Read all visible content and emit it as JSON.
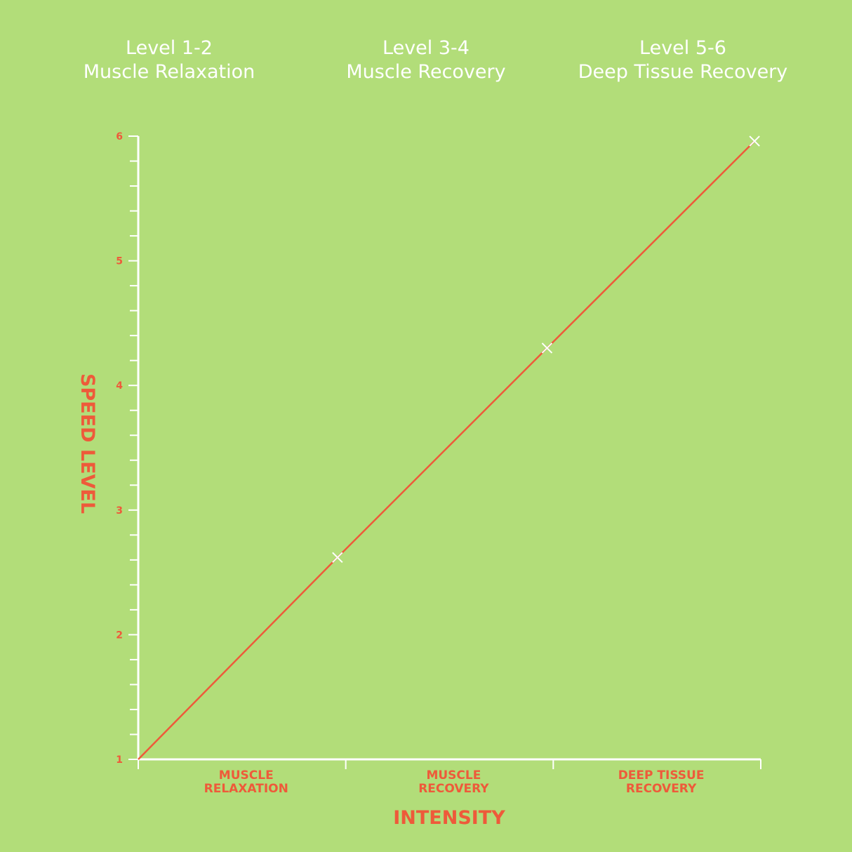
{
  "headers": [
    {
      "line1": "Level 1-2",
      "line2": "Muscle Relaxation"
    },
    {
      "line1": "Level 3-4",
      "line2": "Muscle Recovery"
    },
    {
      "line1": "Level 5-6",
      "line2": "Deep Tissue Recovery"
    }
  ],
  "chart_data": {
    "type": "line",
    "xlabel": "INTENSITY",
    "ylabel": "SPEED LEVEL",
    "ylim": [
      1,
      6
    ],
    "yticks": [
      "1",
      "2",
      "3",
      "4",
      "5",
      "6"
    ],
    "categories": [
      [
        "MUSCLE",
        "RELAXATION"
      ],
      [
        "MUSCLE",
        "RECOVERY"
      ],
      [
        "DEEP TISSUE",
        "RECOVERY"
      ]
    ],
    "xlim": [
      0,
      3
    ],
    "series": [
      {
        "x": [
          0,
          0.96,
          1.97,
          2.97
        ],
        "y": [
          1,
          2.62,
          4.3,
          5.96
        ]
      }
    ],
    "markers": [
      {
        "x": 0.96,
        "y": 2.62
      },
      {
        "x": 1.97,
        "y": 4.3
      },
      {
        "x": 2.97,
        "y": 5.96
      }
    ],
    "grid": false,
    "colors": {
      "line": "#ee5a3a",
      "axis": "#ffffff",
      "marker": "#ffffff",
      "text": "#ee5a3a",
      "background": "#b2dd79"
    }
  }
}
